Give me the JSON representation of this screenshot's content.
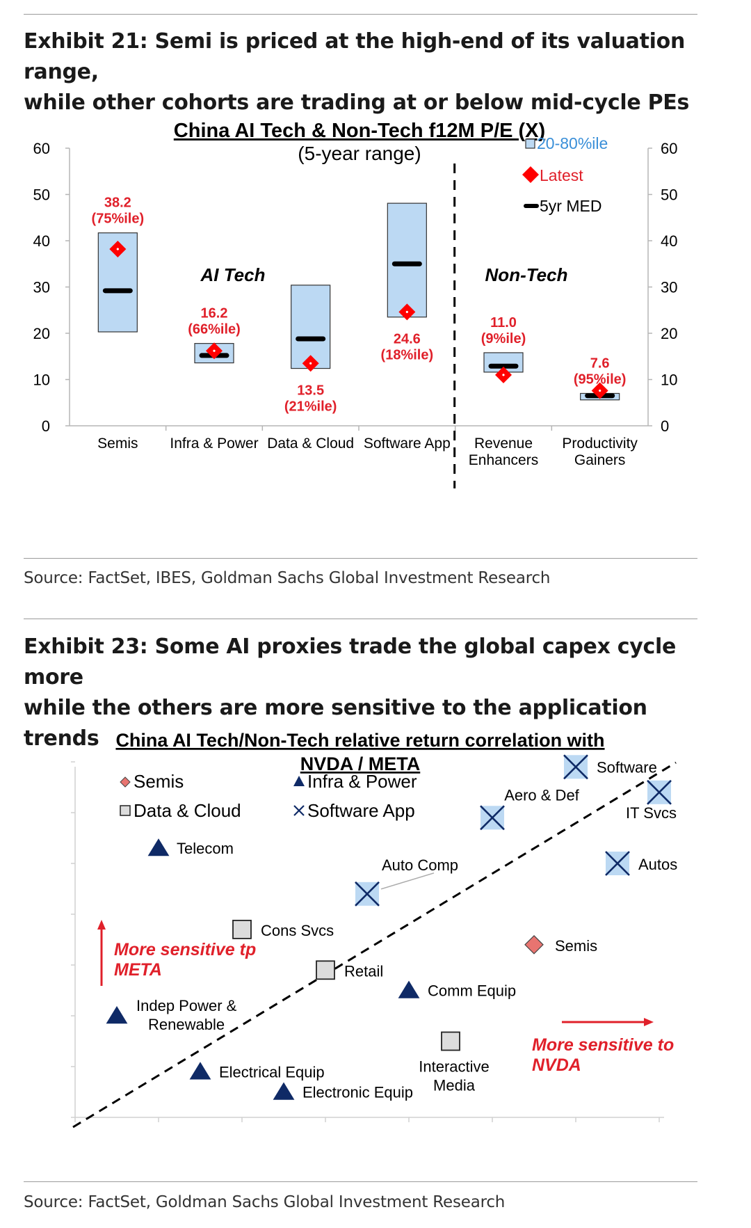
{
  "exhibit21": {
    "heading_line1": "Exhibit 21: Semi is priced at the high-end of its valuation range,",
    "heading_line2": "while other cohorts are trading at or below mid-cycle PEs",
    "source": "Source: FactSet, IBES, Goldman Sachs Global Investment Research"
  },
  "exhibit23": {
    "heading_line1": "Exhibit 23: Some AI proxies trade the global capex cycle more",
    "heading_line2": "while the others are more sensitive to the application trends",
    "source": "Source: FactSet, Goldman Sachs Global Investment Research"
  },
  "colors": {
    "box_fill": "#bcd9f3",
    "latest": "#ff0000",
    "label_red": "#e0202a",
    "legend_blue": "#3a8fd8",
    "triangle": "#0f2a66",
    "diamond": "#e87470"
  },
  "chart_data": [
    {
      "type": "box",
      "title": "China AI Tech & Non-Tech f12M P/E (X)",
      "subtitle": "(5-year range)",
      "ylim": [
        0,
        60
      ],
      "yticks": [
        0,
        10,
        20,
        30,
        40,
        50,
        60
      ],
      "legend": {
        "box": "20-80%ile",
        "latest": "Latest",
        "median": "5yr MED",
        "position": "top-right"
      },
      "group_labels": {
        "ai": "AI Tech",
        "non": "Non-Tech"
      },
      "categories": [
        {
          "lines": [
            "Semis"
          ],
          "low": 20.3,
          "high": 41.7,
          "median": 29.2,
          "latest": 38.2,
          "value_label": "38.2",
          "pct_label": "(75%ile)",
          "label_pos": "above"
        },
        {
          "lines": [
            "Infra & Power"
          ],
          "low": 13.6,
          "high": 17.8,
          "median": 15.2,
          "latest": 16.2,
          "value_label": "16.2",
          "pct_label": "(66%ile)",
          "label_pos": "above"
        },
        {
          "lines": [
            "Data & Cloud"
          ],
          "low": 12.4,
          "high": 30.4,
          "median": 18.8,
          "latest": 13.5,
          "value_label": "13.5",
          "pct_label": "(21%ile)",
          "label_pos": "below"
        },
        {
          "lines": [
            "Software App"
          ],
          "low": 23.5,
          "high": 48.1,
          "median": 35.0,
          "latest": 24.6,
          "value_label": "24.6",
          "pct_label": "(18%ile)",
          "label_pos": "below"
        },
        {
          "lines": [
            "Revenue",
            "Enhancers"
          ],
          "low": 11.6,
          "high": 15.8,
          "median": 12.9,
          "latest": 11.0,
          "value_label": "11.0",
          "pct_label": "(9%ile)",
          "label_pos": "above"
        },
        {
          "lines": [
            "Productivity",
            "Gainers"
          ],
          "low": 5.6,
          "high": 7.0,
          "median": 6.5,
          "latest": 7.6,
          "value_label": "7.6",
          "pct_label": "(95%ile)",
          "label_pos": "above"
        }
      ]
    },
    {
      "type": "scatter",
      "title_line1": "China AI Tech/Non-Tech relative return correlation with",
      "title_line2": "NVDA / META",
      "legend": [
        {
          "shape": "diamond",
          "label": "Semis"
        },
        {
          "shape": "triangle",
          "label": "Infra & Power"
        },
        {
          "shape": "square",
          "label": "Data & Cloud"
        },
        {
          "shape": "cross",
          "label": "Software App"
        }
      ],
      "annotations": {
        "meta_line1": "More sensitive tp",
        "meta_line2": "META",
        "nvda_line1": "More sensitive to",
        "nvda_line2": "NVDA"
      },
      "points": [
        {
          "shape": "triangle",
          "lines": [
            "Telecom"
          ],
          "x": 1.0,
          "y": 5.3
        },
        {
          "shape": "triangle",
          "lines": [
            "Indep Power &",
            "Renewable"
          ],
          "x": 0.5,
          "y": 2.0
        },
        {
          "shape": "triangle",
          "lines": [
            "Electrical Equip"
          ],
          "x": 1.5,
          "y": 0.9
        },
        {
          "shape": "triangle",
          "lines": [
            "Electronic Equip"
          ],
          "x": 2.5,
          "y": 0.5
        },
        {
          "shape": "triangle",
          "lines": [
            "Comm Equip"
          ],
          "x": 4.0,
          "y": 2.5
        },
        {
          "shape": "square",
          "lines": [
            "Cons Svcs"
          ],
          "x": 2.0,
          "y": 3.7
        },
        {
          "shape": "square",
          "lines": [
            "Retail"
          ],
          "x": 3.0,
          "y": 2.9
        },
        {
          "shape": "square",
          "lines": [
            "Interactive",
            "Media"
          ],
          "x": 4.5,
          "y": 1.5
        },
        {
          "shape": "cross",
          "lines": [
            "Auto Comp"
          ],
          "x": 3.5,
          "y": 4.4
        },
        {
          "shape": "cross",
          "lines": [
            "Aero & Def"
          ],
          "x": 5.0,
          "y": 5.9
        },
        {
          "shape": "cross",
          "lines": [
            "Software"
          ],
          "x": 6.0,
          "y": 6.9
        },
        {
          "shape": "cross",
          "lines": [
            "IT Svcs"
          ],
          "x": 7.0,
          "y": 6.4
        },
        {
          "shape": "cross",
          "lines": [
            "Autos"
          ],
          "x": 6.5,
          "y": 5.0
        },
        {
          "shape": "diamond",
          "lines": [
            "Semis"
          ],
          "x": 5.5,
          "y": 3.4
        }
      ]
    }
  ]
}
